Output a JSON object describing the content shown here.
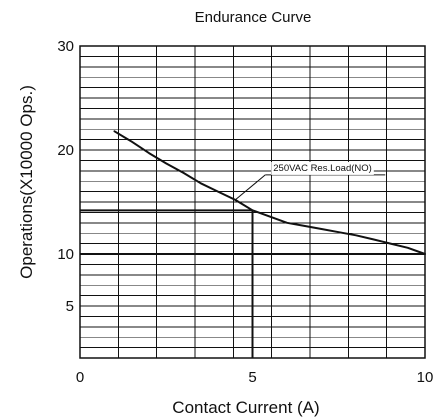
{
  "chart_data": {
    "type": "line",
    "title": "Endurance Curve",
    "xlabel": "Contact Current (A)",
    "ylabel": "Operations(X10000 Ops.)",
    "x_ticks": [
      "0",
      "5",
      "10"
    ],
    "y_ticks": [
      "5",
      "10",
      "20",
      "30"
    ],
    "grid": true,
    "series": [
      {
        "name": "250VAC Res.Load(NO)",
        "x": [
          1,
          1.5,
          2,
          2.5,
          3,
          3.5,
          4,
          4.5,
          5,
          5.5,
          6,
          6.5,
          7,
          7.5,
          8,
          8.5,
          9,
          9.5,
          10
        ],
        "y": [
          21.8,
          20.8,
          19.7,
          18.7,
          17.8,
          16.8,
          16.0,
          15.2,
          14.2,
          13.6,
          13.0,
          12.7,
          12.4,
          12.1,
          11.8,
          11.4,
          11.0,
          10.6,
          10.0
        ]
      }
    ],
    "reference_points": [
      {
        "x": 5,
        "y": 14.2
      }
    ],
    "annotation": {
      "text": "250VAC Res.Load(NO)",
      "x": 4.5,
      "y": 15.2
    },
    "colors": {
      "line": "#111111",
      "grid": "#111111",
      "background": "#ffffff"
    }
  }
}
